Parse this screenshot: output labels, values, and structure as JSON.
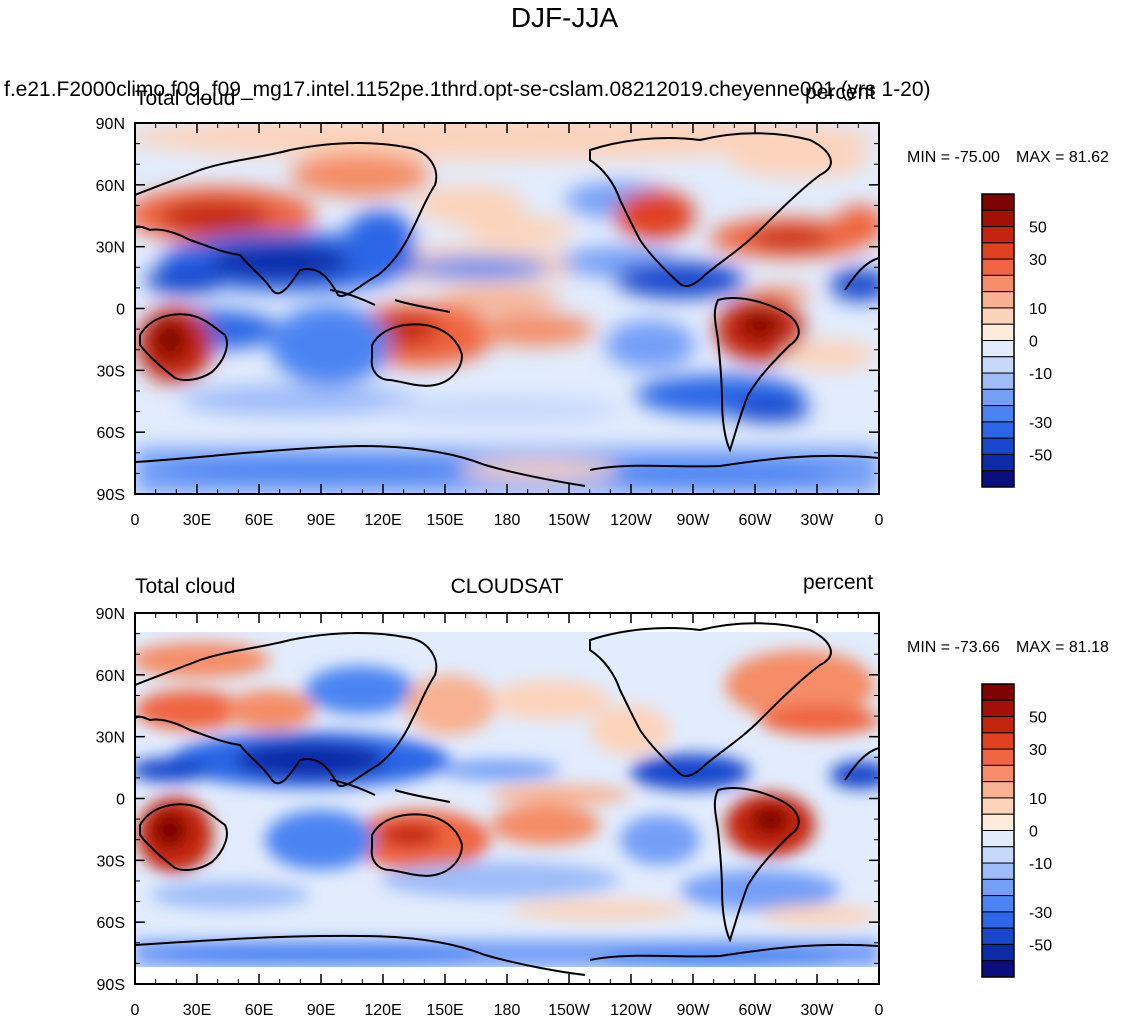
{
  "figure": {
    "title": "DJF-JJA"
  },
  "chart_data": [
    {
      "type": "heatmap",
      "kind": "filled contour world map (cylindrical equidistant, centered on 180)",
      "left_string": "Total cloud",
      "center_string": "f.e21.F2000climo.f09_f09_mg17.intel.1152pe.1thrd.opt-se-cslam.08212019.cheyenne001 (yrs 1-20)",
      "right_string": "percent",
      "min_label": "MIN = -75.00",
      "max_label": "MAX =  81.62",
      "min": -75.0,
      "max": 81.62,
      "x_tick_labels": [
        "0",
        "30E",
        "60E",
        "90E",
        "120E",
        "150E",
        "180",
        "150W",
        "120W",
        "90W",
        "60W",
        "30W",
        "0"
      ],
      "y_tick_labels": [
        "90N",
        "60N",
        "30N",
        "0",
        "30S",
        "60S",
        "90S"
      ],
      "colorbar_labels": [
        "50",
        "30",
        "10",
        "0",
        "-10",
        "-30",
        "-50"
      ],
      "colorbar_levels": [
        -60,
        -50,
        -40,
        -30,
        -20,
        -15,
        -10,
        -5,
        0,
        5,
        10,
        15,
        20,
        30,
        40,
        50,
        60
      ],
      "colorbar_colors": [
        "#0b0e7e",
        "#0d2ba8",
        "#1846cc",
        "#2c66e6",
        "#4b84f2",
        "#759ff7",
        "#9fbcf9",
        "#c6d8fb",
        "#e2ecfd",
        "#fdebdc",
        "#fcd3bb",
        "#f8b192",
        "#f48d68",
        "#ef6540",
        "#e04120",
        "#c4250f",
        "#a21104",
        "#7d0400"
      ]
    },
    {
      "type": "heatmap",
      "kind": "filled contour world map (cylindrical equidistant, centered on 180)",
      "left_string": "Total cloud",
      "center_string": "CLOUDSAT",
      "right_string": "percent",
      "min_label": "MIN = -73.66",
      "max_label": "MAX =  81.18",
      "min": -73.66,
      "max": 81.18,
      "x_tick_labels": [
        "0",
        "30E",
        "60E",
        "90E",
        "120E",
        "150E",
        "180",
        "150W",
        "120W",
        "90W",
        "60W",
        "30W",
        "0"
      ],
      "y_tick_labels": [
        "90N",
        "60N",
        "30N",
        "0",
        "30S",
        "60S",
        "90S"
      ],
      "colorbar_labels": [
        "50",
        "30",
        "10",
        "0",
        "-10",
        "-30",
        "-50"
      ],
      "colorbar_levels": [
        -60,
        -50,
        -40,
        -30,
        -20,
        -15,
        -10,
        -5,
        0,
        5,
        10,
        15,
        20,
        30,
        40,
        50,
        60
      ],
      "colorbar_colors": [
        "#0b0e7e",
        "#0d2ba8",
        "#1846cc",
        "#2c66e6",
        "#4b84f2",
        "#759ff7",
        "#9fbcf9",
        "#c6d8fb",
        "#e2ecfd",
        "#fdebdc",
        "#fcd3bb",
        "#f8b192",
        "#f48d68",
        "#ef6540",
        "#e04120",
        "#c4250f",
        "#a21104",
        "#7d0400"
      ]
    }
  ]
}
